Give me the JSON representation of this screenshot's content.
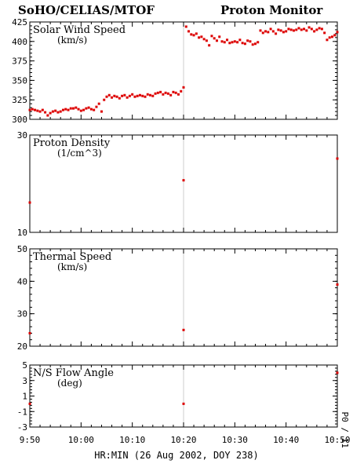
{
  "header": {
    "left": "SoHO/CELIAS/MTOF",
    "right": "Proton Monitor"
  },
  "chart_data": {
    "type": "scatter",
    "xlabel": "HR:MIN (26 Aug 2002, DOY 238)",
    "x_ticks": [
      "9:50",
      "10:00",
      "10:10",
      "10:20",
      "10:30",
      "10:40",
      "10:50"
    ],
    "x_range_minutes": [
      590,
      650
    ],
    "marker_color": "#dd0000",
    "divider_line": "10:20",
    "side_label": "P0 / 11",
    "panels": [
      {
        "title": "Solar Wind Speed",
        "unit": "(km/s)",
        "ylim": [
          300,
          425
        ],
        "y_ticks": [
          "300",
          "325",
          "350",
          "375",
          "400",
          "425"
        ],
        "series": [
          {
            "x": [
              "9:50",
              "9:50.5",
              "9:51",
              "9:51.5",
              "9:52",
              "9:52.5",
              "9:53",
              "9:53.5",
              "9:54",
              "9:54.5",
              "9:55",
              "9:55.5",
              "9:56",
              "9:56.5",
              "9:57",
              "9:57.5",
              "9:58",
              "9:58.5",
              "9:59",
              "9:59.5",
              "10:00",
              "10:00.5",
              "10:01",
              "10:01.5",
              "10:02",
              "10:02.5",
              "10:03",
              "10:03.5",
              "10:04",
              "10:04.5",
              "10:05",
              "10:05.5",
              "10:06",
              "10:06.5",
              "10:07",
              "10:07.5",
              "10:08",
              "10:08.5",
              "10:09",
              "10:09.5",
              "10:10",
              "10:10.5",
              "10:11",
              "10:11.5",
              "10:12",
              "10:12.5",
              "10:13",
              "10:13.5",
              "10:14",
              "10:14.5",
              "10:15",
              "10:15.5",
              "10:16",
              "10:16.5",
              "10:17",
              "10:17.5",
              "10:18",
              "10:18.5",
              "10:19",
              "10:19.5",
              "10:20",
              "10:20.5",
              "10:21",
              "10:21.5",
              "10:22",
              "10:22.5",
              "10:23",
              "10:23.5",
              "10:24",
              "10:24.5",
              "10:25",
              "10:25.5",
              "10:26",
              "10:26.5",
              "10:27",
              "10:27.5",
              "10:28",
              "10:28.5",
              "10:29",
              "10:29.5",
              "10:30",
              "10:30.5",
              "10:31",
              "10:31.5",
              "10:32",
              "10:32.5",
              "10:33",
              "10:33.5",
              "10:34",
              "10:34.5",
              "10:35",
              "10:35.5",
              "10:36",
              "10:36.5",
              "10:37",
              "10:37.5",
              "10:38",
              "10:38.5",
              "10:39",
              "10:39.5",
              "10:40",
              "10:40.5",
              "10:41",
              "10:41.5",
              "10:42",
              "10:42.5",
              "10:43",
              "10:43.5",
              "10:44",
              "10:44.5",
              "10:45",
              "10:45.5",
              "10:46",
              "10:46.5",
              "10:47",
              "10:47.5",
              "10:48",
              "10:48.5",
              "10:49",
              "10:49.5",
              "10:50"
            ],
            "values": [
              312,
              313,
              312,
              311,
              310,
              312,
              309,
              305,
              308,
              310,
              311,
              309,
              310,
              312,
              313,
              312,
              314,
              314,
              315,
              313,
              311,
              312,
              314,
              315,
              313,
              312,
              316,
              320,
              310,
              325,
              329,
              331,
              328,
              330,
              329,
              327,
              330,
              331,
              328,
              330,
              332,
              329,
              330,
              331,
              330,
              329,
              332,
              331,
              330,
              333,
              334,
              335,
              332,
              334,
              333,
              331,
              335,
              334,
              332,
              336,
              341,
              419,
              413,
              409,
              408,
              410,
              405,
              406,
              403,
              401,
              395,
              407,
              404,
              401,
              406,
              400,
              399,
              402,
              398,
              399,
              400,
              399,
              402,
              398,
              397,
              401,
              400,
              396,
              397,
              399,
              414,
              411,
              413,
              412,
              416,
              413,
              410,
              415,
              414,
              412,
              413,
              416,
              415,
              414,
              415,
              417,
              415,
              416,
              414,
              418,
              416,
              413,
              415,
              417,
              416,
              411,
              402,
              405,
              406,
              408,
              412
            ]
          }
        ]
      },
      {
        "title": "Proton Density",
        "unit": "(1/cm^3)",
        "ylim": [
          10,
          30
        ],
        "y_ticks": [
          "10",
          "30"
        ],
        "y_log": true,
        "series": [
          {
            "x": [
              "9:50",
              "10:20",
              "10:50"
            ],
            "values": [
              14,
              18,
              23
            ]
          }
        ]
      },
      {
        "title": "Thermal Speed",
        "unit": "(km/s)",
        "ylim": [
          20,
          50
        ],
        "y_ticks": [
          "20",
          "30",
          "40",
          "50"
        ],
        "series": [
          {
            "x": [
              "9:50",
              "10:20",
              "10:50"
            ],
            "values": [
              24,
              25,
              39
            ]
          }
        ]
      },
      {
        "title": "N/S Flow Angle",
        "unit": "(deg)",
        "ylim": [
          -3,
          5
        ],
        "y_ticks": [
          "-3",
          "-1",
          "1",
          "3",
          "5"
        ],
        "series": [
          {
            "x": [
              "9:50",
              "10:20",
              "10:50"
            ],
            "values": [
              0,
              0,
              4
            ]
          }
        ]
      }
    ]
  }
}
